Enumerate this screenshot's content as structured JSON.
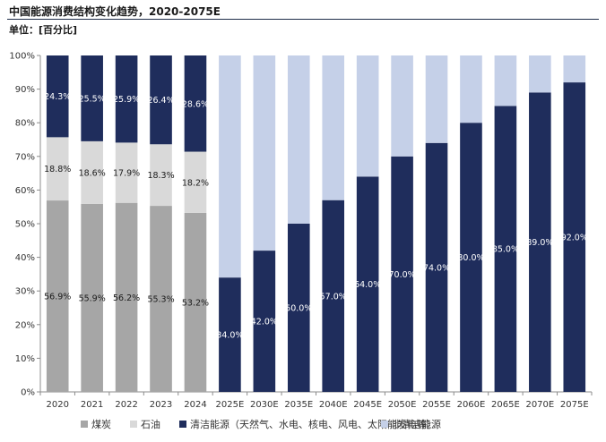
{
  "header": {
    "title": "中国能源消费结构变化趋势，2020-2075E",
    "unit": "单位：[百分比]"
  },
  "colors": {
    "coal": "#a6a6a6",
    "oil": "#d9d9d9",
    "clean": "#1f2d5c",
    "nonclean": "#c5d0e8"
  },
  "chart_data": {
    "type": "bar",
    "stacked": true,
    "title": "中国能源消费结构变化趋势，2020-2075E",
    "ylabel": "",
    "ylim": [
      0,
      100
    ],
    "y_ticks": [
      "0%",
      "10%",
      "20%",
      "30%",
      "40%",
      "50%",
      "60%",
      "70%",
      "80%",
      "90%",
      "100%"
    ],
    "categories": [
      "2020",
      "2021",
      "2022",
      "2023",
      "2024",
      "2025E",
      "2030E",
      "2035E",
      "2040E",
      "2045E",
      "2050E",
      "2055E",
      "2060E",
      "2065E",
      "2070E",
      "2075E"
    ],
    "legend_position": "bottom",
    "series": [
      {
        "name": "煤炭",
        "key": "coal",
        "values": [
          56.9,
          55.9,
          56.2,
          55.3,
          53.2,
          null,
          null,
          null,
          null,
          null,
          null,
          null,
          null,
          null,
          null,
          null
        ],
        "labels": [
          "56.9%",
          "55.9%",
          "56.2%",
          "55.3%",
          "53.2%",
          "",
          "",
          "",
          "",
          "",
          "",
          "",
          "",
          "",
          "",
          ""
        ]
      },
      {
        "name": "石油",
        "key": "oil",
        "values": [
          18.8,
          18.6,
          17.9,
          18.3,
          18.2,
          null,
          null,
          null,
          null,
          null,
          null,
          null,
          null,
          null,
          null,
          null
        ],
        "labels": [
          "18.8%",
          "18.6%",
          "17.9%",
          "18.3%",
          "18.2%",
          "",
          "",
          "",
          "",
          "",
          "",
          "",
          "",
          "",
          "",
          ""
        ]
      },
      {
        "name": "清洁能源（天然气、水电、核电、风电、太阳能发电等）",
        "key": "clean",
        "values": [
          24.3,
          25.5,
          25.9,
          26.4,
          28.6,
          34.0,
          42.0,
          50.0,
          57.0,
          64.0,
          70.0,
          74.0,
          80.0,
          85.0,
          89.0,
          92.0
        ],
        "labels": [
          "24.3%",
          "25.5%",
          "25.9%",
          "26.4%",
          "28.6%",
          "34.0%",
          "42.0%",
          "50.0%",
          "57.0%",
          "64.0%",
          "70.0%",
          "74.0%",
          "80.0%",
          "85.0%",
          "89.0%",
          "92.0%"
        ]
      },
      {
        "name": "非清洁能源",
        "key": "nonclean",
        "values": [
          null,
          null,
          null,
          null,
          null,
          66.0,
          58.0,
          50.0,
          43.0,
          36.0,
          30.0,
          26.0,
          20.0,
          15.0,
          11.0,
          8.0
        ],
        "labels": [
          "",
          "",
          "",
          "",
          "",
          "",
          "",
          "",
          "",
          "",
          "",
          "",
          "",
          "",
          "",
          ""
        ]
      }
    ]
  }
}
